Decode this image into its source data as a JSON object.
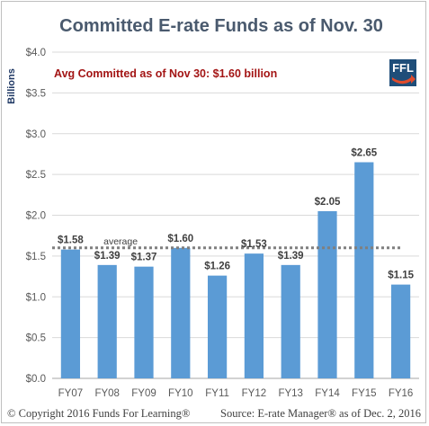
{
  "chart_data": {
    "type": "bar",
    "title": "Committed E-rate Funds as of Nov. 30",
    "ylabel": "Billions",
    "xlabel": "",
    "ylim": [
      0,
      4.0
    ],
    "ytick_labels": [
      "$0.0",
      "$0.5",
      "$1.0",
      "$1.5",
      "$2.0",
      "$2.5",
      "$3.0",
      "$3.5",
      "$4.0"
    ],
    "yticks": [
      0,
      0.5,
      1.0,
      1.5,
      2.0,
      2.5,
      3.0,
      3.5,
      4.0
    ],
    "categories": [
      "FY07",
      "FY08",
      "FY09",
      "FY10",
      "FY11",
      "FY12",
      "FY13",
      "FY14",
      "FY15",
      "FY16"
    ],
    "values": [
      1.58,
      1.39,
      1.37,
      1.6,
      1.26,
      1.53,
      1.39,
      2.05,
      2.65,
      1.15
    ],
    "data_labels": [
      "$1.58",
      "$1.39",
      "$1.37",
      "$1.60",
      "$1.26",
      "$1.53",
      "$1.39",
      "$2.05",
      "$2.65",
      "$1.15"
    ],
    "average": 1.6,
    "average_label": "average",
    "annotation": "Avg Committed as of Nov 30: $1.60 billion",
    "grid": true,
    "bar_color": "#5b9bd5"
  },
  "logo": {
    "text": "FFL",
    "bg_color": "#1f4e79",
    "accent_color": "#e04b2c",
    "icon": "ffl-logo-icon"
  },
  "footer": {
    "copyright": "© Copyright 2016 Funds For Learning®",
    "source": "Source: E-rate Manager® as of Dec. 2, 2016"
  }
}
